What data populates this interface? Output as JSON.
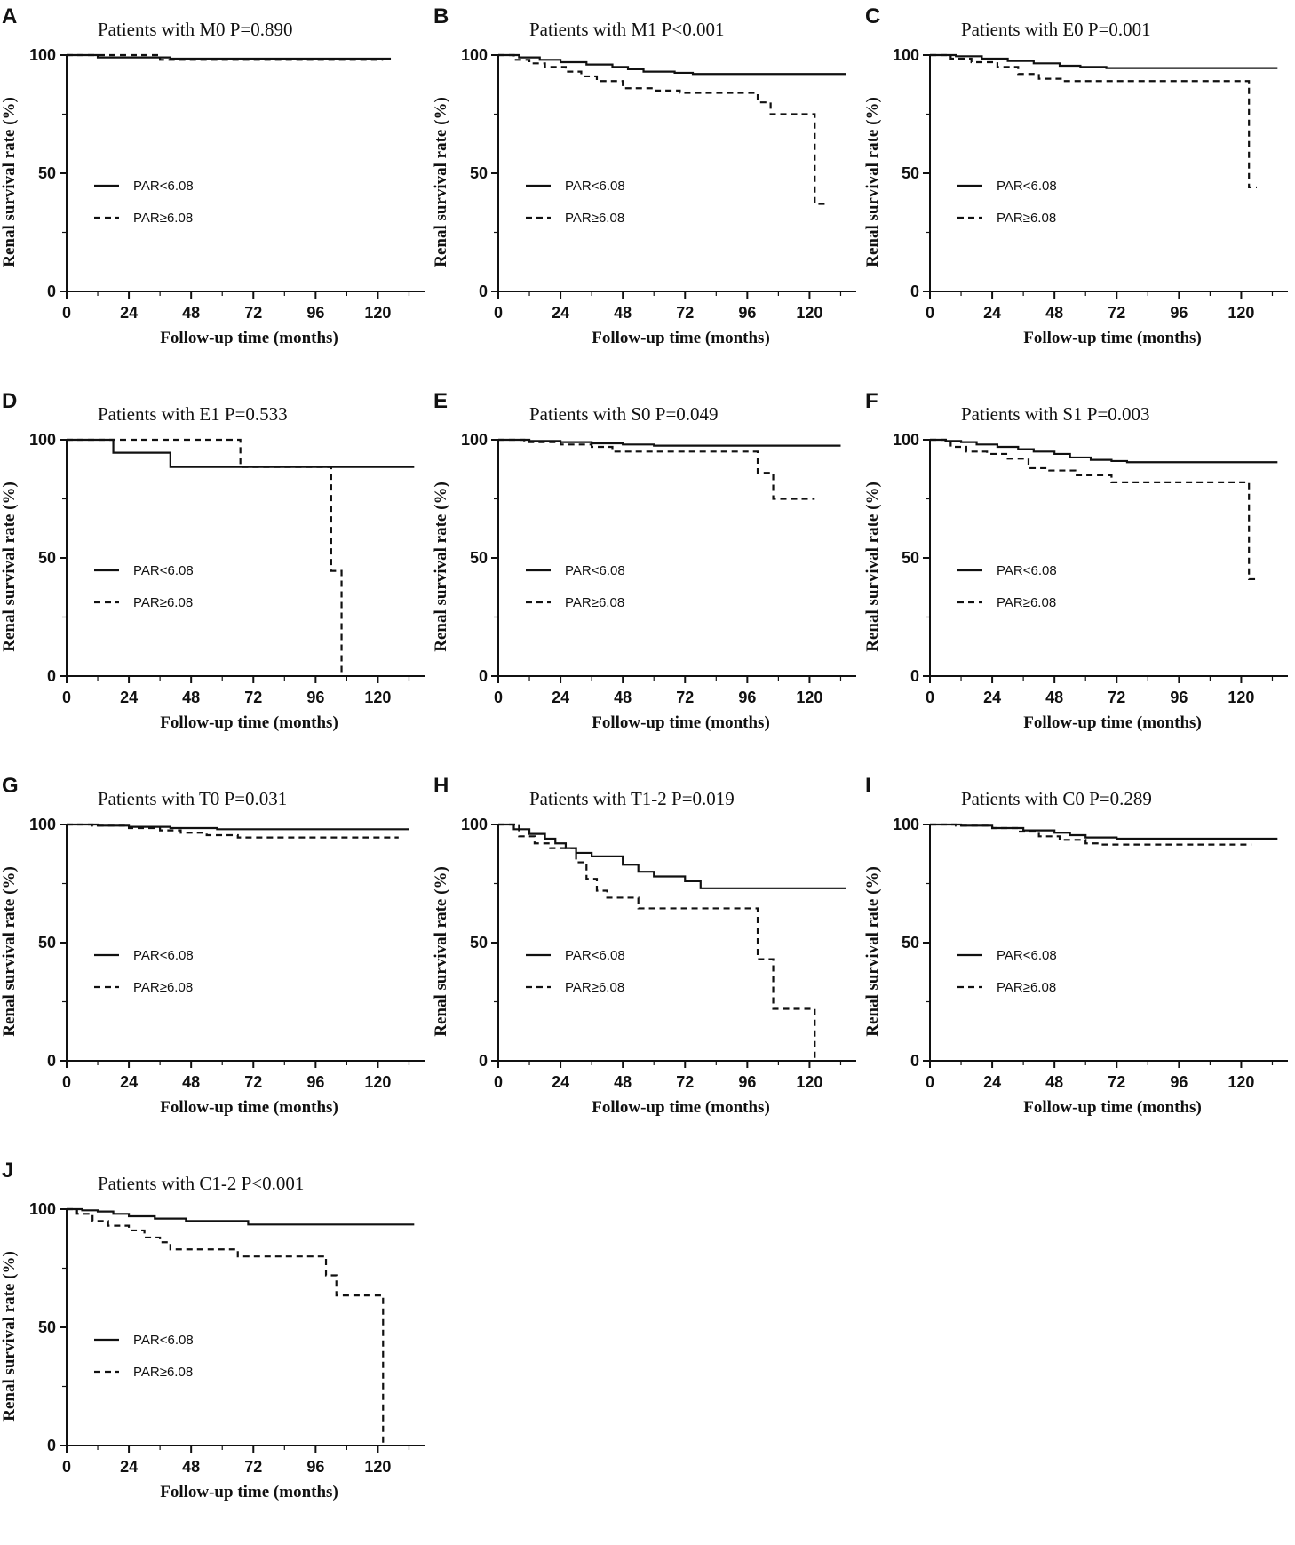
{
  "figure": {
    "axis_titles": {
      "x": "Follow-up time (months)",
      "y": "Renal survival rate (%)"
    },
    "x_ticks": [
      "0",
      "24",
      "48",
      "72",
      "96",
      "120"
    ],
    "y_ticks": [
      "0",
      "50",
      "100"
    ],
    "legend": {
      "solid": "PAR<6.08",
      "dashed": "PAR≥6.08"
    }
  },
  "chart_data": [
    {
      "type": "line",
      "panel_label": "A",
      "title": "Patients with M0 P=0.890",
      "xlabel": "Follow-up time (months)",
      "ylabel": "Renal survival rate (%)",
      "xlim": [
        0,
        135
      ],
      "ylim": [
        0,
        100
      ],
      "legend_position": "left-middle",
      "series": [
        {
          "name": "PAR<6.08",
          "style": "solid",
          "steps": [
            [
              0,
              100
            ],
            [
              12,
              99
            ],
            [
              40,
              98.5
            ],
            [
              125,
              98.5
            ]
          ]
        },
        {
          "name": "PAR≥6.08",
          "style": "dashed",
          "steps": [
            [
              0,
              100
            ],
            [
              36,
              98
            ],
            [
              122,
              98
            ]
          ]
        }
      ]
    },
    {
      "type": "line",
      "panel_label": "B",
      "title": "Patients with M1 P<0.001",
      "xlabel": "Follow-up time (months)",
      "ylabel": "Renal survival rate (%)",
      "xlim": [
        0,
        135
      ],
      "ylim": [
        0,
        100
      ],
      "legend_position": "left-middle",
      "series": [
        {
          "name": "PAR<6.08",
          "style": "solid",
          "steps": [
            [
              0,
              100
            ],
            [
              8,
              99
            ],
            [
              16,
              98
            ],
            [
              24,
              97
            ],
            [
              34,
              96
            ],
            [
              44,
              95
            ],
            [
              50,
              94
            ],
            [
              56,
              93
            ],
            [
              68,
              92.5
            ],
            [
              75,
              92
            ],
            [
              134,
              92
            ]
          ]
        },
        {
          "name": "PAR≥6.08",
          "style": "dashed",
          "steps": [
            [
              0,
              100
            ],
            [
              6,
              98
            ],
            [
              12,
              96.5
            ],
            [
              18,
              95
            ],
            [
              26,
              93
            ],
            [
              32,
              91
            ],
            [
              38,
              89
            ],
            [
              48,
              86
            ],
            [
              60,
              85
            ],
            [
              70,
              84
            ],
            [
              100,
              80
            ],
            [
              105,
              75
            ],
            [
              122,
              37
            ],
            [
              126,
              37
            ]
          ]
        }
      ]
    },
    {
      "type": "line",
      "panel_label": "C",
      "title": "Patients with E0 P=0.001",
      "xlabel": "Follow-up time (months)",
      "ylabel": "Renal survival rate (%)",
      "xlim": [
        0,
        135
      ],
      "ylim": [
        0,
        100
      ],
      "legend_position": "left-middle",
      "series": [
        {
          "name": "PAR<6.08",
          "style": "solid",
          "steps": [
            [
              0,
              100
            ],
            [
              10,
              99.5
            ],
            [
              20,
              98.5
            ],
            [
              30,
              97.5
            ],
            [
              40,
              96.5
            ],
            [
              50,
              95.5
            ],
            [
              58,
              95
            ],
            [
              68,
              94.5
            ],
            [
              134,
              94.5
            ]
          ]
        },
        {
          "name": "PAR≥6.08",
          "style": "dashed",
          "steps": [
            [
              0,
              100
            ],
            [
              8,
              98.5
            ],
            [
              16,
              97
            ],
            [
              26,
              95
            ],
            [
              34,
              92
            ],
            [
              42,
              90
            ],
            [
              52,
              89
            ],
            [
              123,
              44
            ],
            [
              126,
              44
            ]
          ]
        }
      ]
    },
    {
      "type": "line",
      "panel_label": "D",
      "title": "Patients with E1 P=0.533",
      "xlabel": "Follow-up time (months)",
      "ylabel": "Renal survival rate (%)",
      "xlim": [
        0,
        135
      ],
      "ylim": [
        0,
        100
      ],
      "legend_position": "left-middle",
      "series": [
        {
          "name": "PAR<6.08",
          "style": "solid",
          "steps": [
            [
              0,
              100
            ],
            [
              18,
              94.5
            ],
            [
              40,
              88.5
            ],
            [
              134,
              88.5
            ]
          ]
        },
        {
          "name": "PAR≥6.08",
          "style": "dashed",
          "steps": [
            [
              0,
              100
            ],
            [
              67,
              88.5
            ],
            [
              102,
              44.5
            ],
            [
              106,
              0
            ]
          ]
        }
      ]
    },
    {
      "type": "line",
      "panel_label": "E",
      "title": "Patients with S0 P=0.049",
      "xlabel": "Follow-up time (months)",
      "ylabel": "Renal survival rate (%)",
      "xlim": [
        0,
        135
      ],
      "ylim": [
        0,
        100
      ],
      "legend_position": "left-middle",
      "series": [
        {
          "name": "PAR<6.08",
          "style": "solid",
          "steps": [
            [
              0,
              100
            ],
            [
              12,
              99.5
            ],
            [
              24,
              99
            ],
            [
              36,
              98.5
            ],
            [
              48,
              98
            ],
            [
              60,
              97.5
            ],
            [
              132,
              97.5
            ]
          ]
        },
        {
          "name": "PAR≥6.08",
          "style": "dashed",
          "steps": [
            [
              0,
              100
            ],
            [
              10,
              99
            ],
            [
              24,
              98
            ],
            [
              36,
              97
            ],
            [
              44,
              95
            ],
            [
              100,
              86
            ],
            [
              106,
              75
            ],
            [
              122,
              75
            ]
          ]
        }
      ]
    },
    {
      "type": "line",
      "panel_label": "F",
      "title": "Patients with S1 P=0.003",
      "xlabel": "Follow-up time (months)",
      "ylabel": "Renal survival rate (%)",
      "xlim": [
        0,
        135
      ],
      "ylim": [
        0,
        100
      ],
      "legend_position": "left-middle",
      "series": [
        {
          "name": "PAR<6.08",
          "style": "solid",
          "steps": [
            [
              0,
              100
            ],
            [
              6,
              99.5
            ],
            [
              12,
              99
            ],
            [
              18,
              98
            ],
            [
              26,
              97
            ],
            [
              34,
              96
            ],
            [
              40,
              95
            ],
            [
              48,
              94
            ],
            [
              54,
              92.5
            ],
            [
              62,
              91.5
            ],
            [
              70,
              91
            ],
            [
              76,
              90.5
            ],
            [
              134,
              90.5
            ]
          ]
        },
        {
          "name": "PAR≥6.08",
          "style": "dashed",
          "steps": [
            [
              0,
              100
            ],
            [
              8,
              97
            ],
            [
              14,
              95
            ],
            [
              22,
              94
            ],
            [
              30,
              92
            ],
            [
              38,
              88
            ],
            [
              46,
              87
            ],
            [
              56,
              85
            ],
            [
              70,
              82
            ],
            [
              123,
              41
            ],
            [
              126,
              41
            ]
          ]
        }
      ]
    },
    {
      "type": "line",
      "panel_label": "G",
      "title": "Patients with T0 P=0.031",
      "xlabel": "Follow-up time (months)",
      "ylabel": "Renal survival rate (%)",
      "xlim": [
        0,
        135
      ],
      "ylim": [
        0,
        100
      ],
      "legend_position": "left-middle",
      "series": [
        {
          "name": "PAR<6.08",
          "style": "solid",
          "steps": [
            [
              0,
              100
            ],
            [
              12,
              99.5
            ],
            [
              24,
              99
            ],
            [
              40,
              98.5
            ],
            [
              58,
              98
            ],
            [
              132,
              98
            ]
          ]
        },
        {
          "name": "PAR≥6.08",
          "style": "dashed",
          "steps": [
            [
              0,
              100
            ],
            [
              10,
              99.5
            ],
            [
              24,
              98.5
            ],
            [
              36,
              97.5
            ],
            [
              44,
              96.5
            ],
            [
              54,
              95.5
            ],
            [
              66,
              94.5
            ],
            [
              128,
              94.5
            ]
          ]
        }
      ]
    },
    {
      "type": "line",
      "panel_label": "H",
      "title": "Patients with T1-2 P=0.019",
      "xlabel": "Follow-up time (months)",
      "ylabel": "Renal survival rate (%)",
      "xlim": [
        0,
        135
      ],
      "ylim": [
        0,
        100
      ],
      "legend_position": "left-middle",
      "series": [
        {
          "name": "PAR<6.08",
          "style": "solid",
          "steps": [
            [
              0,
              100
            ],
            [
              6,
              98
            ],
            [
              12,
              96
            ],
            [
              18,
              94
            ],
            [
              22,
              92
            ],
            [
              26,
              90
            ],
            [
              30,
              88
            ],
            [
              36,
              86.5
            ],
            [
              48,
              83
            ],
            [
              54,
              80
            ],
            [
              60,
              78
            ],
            [
              72,
              76
            ],
            [
              78,
              73
            ],
            [
              134,
              73
            ]
          ]
        },
        {
          "name": "PAR≥6.08",
          "style": "dashed",
          "steps": [
            [
              0,
              100
            ],
            [
              8,
              95
            ],
            [
              14,
              92
            ],
            [
              20,
              90
            ],
            [
              30,
              84
            ],
            [
              34,
              77
            ],
            [
              38,
              72
            ],
            [
              42,
              69
            ],
            [
              54,
              64.5
            ],
            [
              100,
              43
            ],
            [
              106,
              22
            ],
            [
              122,
              0
            ]
          ]
        }
      ]
    },
    {
      "type": "line",
      "panel_label": "I",
      "title": "Patients with C0 P=0.289",
      "xlabel": "Follow-up time (months)",
      "ylabel": "Renal survival rate (%)",
      "xlim": [
        0,
        135
      ],
      "ylim": [
        0,
        100
      ],
      "legend_position": "left-middle",
      "series": [
        {
          "name": "PAR<6.08",
          "style": "solid",
          "steps": [
            [
              0,
              100
            ],
            [
              12,
              99.5
            ],
            [
              24,
              98.5
            ],
            [
              36,
              97.5
            ],
            [
              48,
              96.5
            ],
            [
              54,
              95.5
            ],
            [
              60,
              94.5
            ],
            [
              72,
              94
            ],
            [
              134,
              94
            ]
          ]
        },
        {
          "name": "PAR≥6.08",
          "style": "dashed",
          "steps": [
            [
              0,
              100
            ],
            [
              10,
              99.5
            ],
            [
              24,
              98.5
            ],
            [
              34,
              97
            ],
            [
              42,
              95
            ],
            [
              50,
              93.5
            ],
            [
              60,
              92
            ],
            [
              66,
              91.5
            ],
            [
              124,
              91.5
            ]
          ]
        }
      ]
    },
    {
      "type": "line",
      "panel_label": "J",
      "title": "Patients with C1-2 P<0.001",
      "xlabel": "Follow-up time (months)",
      "ylabel": "Renal survival rate (%)",
      "xlim": [
        0,
        135
      ],
      "ylim": [
        0,
        100
      ],
      "legend_position": "left-middle",
      "series": [
        {
          "name": "PAR<6.08",
          "style": "solid",
          "steps": [
            [
              0,
              100
            ],
            [
              6,
              99.5
            ],
            [
              12,
              99
            ],
            [
              18,
              98
            ],
            [
              24,
              97
            ],
            [
              34,
              96
            ],
            [
              46,
              95
            ],
            [
              70,
              93.5
            ],
            [
              134,
              93.5
            ]
          ]
        },
        {
          "name": "PAR≥6.08",
          "style": "dashed",
          "steps": [
            [
              0,
              100
            ],
            [
              4,
              98
            ],
            [
              10,
              95
            ],
            [
              16,
              93
            ],
            [
              24,
              91
            ],
            [
              30,
              88
            ],
            [
              36,
              86
            ],
            [
              40,
              83
            ],
            [
              66,
              80
            ],
            [
              100,
              72
            ],
            [
              104,
              63.5
            ],
            [
              122,
              0
            ]
          ]
        }
      ]
    }
  ]
}
